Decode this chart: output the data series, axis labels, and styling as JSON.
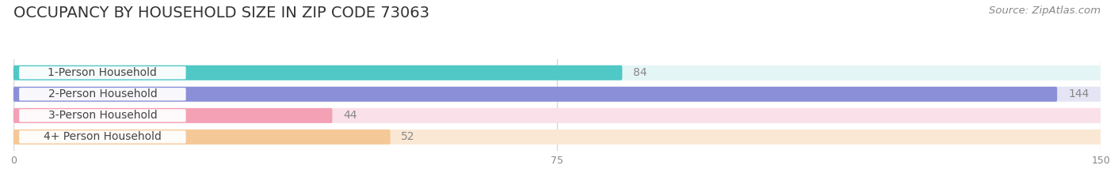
{
  "title": "OCCUPANCY BY HOUSEHOLD SIZE IN ZIP CODE 73063",
  "source": "Source: ZipAtlas.com",
  "categories": [
    "1-Person Household",
    "2-Person Household",
    "3-Person Household",
    "4+ Person Household"
  ],
  "values": [
    84,
    144,
    44,
    52
  ],
  "bar_colors": [
    "#50C8C6",
    "#8B8FD8",
    "#F4A0B5",
    "#F5C898"
  ],
  "bar_bg_colors": [
    "#E4F5F5",
    "#E4E4F5",
    "#FAE0E8",
    "#FAE8D5"
  ],
  "xlim": [
    0,
    150
  ],
  "xticks": [
    0,
    75,
    150
  ],
  "title_fontsize": 14,
  "source_fontsize": 9.5,
  "label_fontsize": 10,
  "value_fontsize": 10,
  "bg_color": "#FFFFFF",
  "grid_color": "#D8D8D8",
  "text_color": "#555555",
  "value_color_inside": "#FFFFFF",
  "value_color_outside": "#888888"
}
